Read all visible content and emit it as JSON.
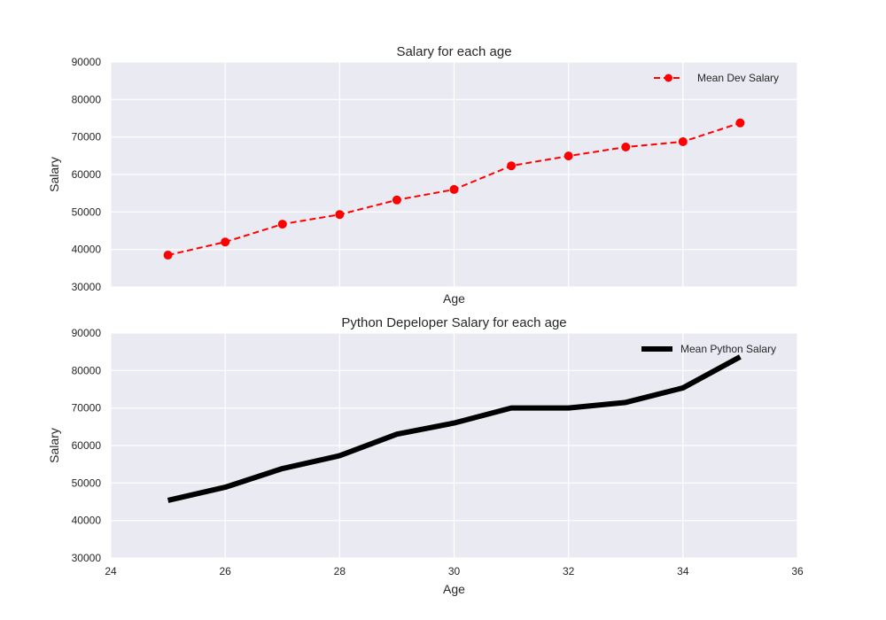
{
  "chart_data": [
    {
      "type": "line",
      "title": "Salary for each age",
      "xlabel": "Age",
      "ylabel": "Salary",
      "xlim": [
        24,
        36
      ],
      "ylim": [
        30000,
        90000
      ],
      "xticks": [],
      "yticks": [
        30000,
        40000,
        50000,
        60000,
        70000,
        80000,
        90000
      ],
      "grid": true,
      "legend_position": "top-right",
      "x": [
        25,
        26,
        27,
        28,
        29,
        30,
        31,
        32,
        33,
        34,
        35
      ],
      "series": [
        {
          "name": "Mean Dev Salary",
          "color": "#ff0000",
          "style": "dashed",
          "marker": "circle",
          "values": [
            38496,
            42000,
            46752,
            49320,
            53200,
            56000,
            62316,
            64928,
            67317,
            68748,
            73752
          ]
        }
      ]
    },
    {
      "type": "line",
      "title": "Python Depeloper Salary for each age",
      "xlabel": "Age",
      "ylabel": "Salary",
      "xlim": [
        24,
        36
      ],
      "ylim": [
        30000,
        90000
      ],
      "xticks": [
        24,
        26,
        28,
        30,
        32,
        34,
        36
      ],
      "yticks": [
        30000,
        40000,
        50000,
        60000,
        70000,
        80000,
        90000
      ],
      "grid": true,
      "legend_position": "top-right",
      "x": [
        25,
        26,
        27,
        28,
        29,
        30,
        31,
        32,
        33,
        34,
        35
      ],
      "series": [
        {
          "name": "Mean Python Salary",
          "color": "#000000",
          "style": "solid",
          "marker": "none",
          "values": [
            45372,
            48876,
            53850,
            57287,
            63016,
            65998,
            70003,
            70000,
            71496,
            75370,
            83640
          ]
        }
      ]
    }
  ]
}
